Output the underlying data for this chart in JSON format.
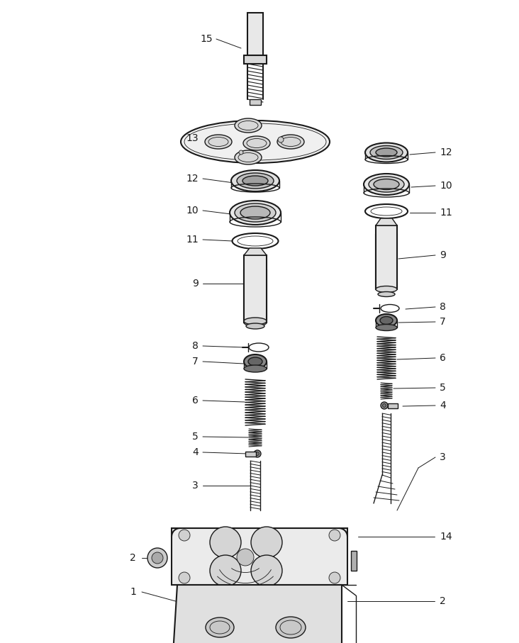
{
  "bg_color": "#ffffff",
  "line_color": "#1a1a1a",
  "label_color": "#111111",
  "lw": 1.0,
  "lw_thick": 1.5,
  "lw_thin": 0.6,
  "figsize": [
    7.32,
    9.07
  ],
  "dpi": 100
}
